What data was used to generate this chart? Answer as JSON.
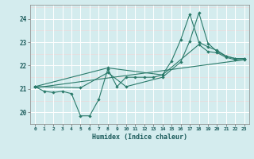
{
  "xlabel": "Humidex (Indice chaleur)",
  "ylabel": "",
  "bg_color": "#d4ecee",
  "grid_color": "#ffffff",
  "line_color": "#2a7a6a",
  "xlim": [
    -0.5,
    23.5
  ],
  "ylim": [
    19.5,
    24.6
  ],
  "yticks": [
    20,
    21,
    22,
    23,
    24
  ],
  "xticks": [
    0,
    1,
    2,
    3,
    4,
    5,
    6,
    7,
    8,
    9,
    10,
    11,
    12,
    13,
    14,
    15,
    16,
    17,
    18,
    19,
    20,
    21,
    22,
    23
  ],
  "series1": {
    "x": [
      0,
      1,
      2,
      3,
      4,
      5,
      6,
      7,
      8,
      9,
      10,
      11,
      12,
      13,
      14,
      15,
      16,
      17,
      18,
      19,
      20,
      21,
      22,
      23
    ],
    "y": [
      21.1,
      20.9,
      20.85,
      20.9,
      20.8,
      19.85,
      19.85,
      20.55,
      21.85,
      21.1,
      21.5,
      21.5,
      21.5,
      21.5,
      21.6,
      22.2,
      23.1,
      24.2,
      23.0,
      22.8,
      22.65,
      22.4,
      22.3,
      22.3
    ]
  },
  "series2": {
    "x": [
      0,
      5,
      8,
      10,
      14,
      16,
      17,
      18,
      19,
      20,
      21,
      22,
      23
    ],
    "y": [
      21.1,
      21.05,
      21.7,
      21.1,
      21.5,
      22.15,
      23.05,
      24.25,
      22.95,
      22.6,
      22.4,
      22.3,
      22.3
    ]
  },
  "series3": {
    "x": [
      0,
      8,
      14,
      18,
      19,
      20,
      21,
      22,
      23
    ],
    "y": [
      21.1,
      21.9,
      21.6,
      22.9,
      22.6,
      22.55,
      22.35,
      22.25,
      22.25
    ]
  },
  "trend_line": {
    "x": [
      0,
      23
    ],
    "y": [
      21.05,
      22.25
    ]
  }
}
